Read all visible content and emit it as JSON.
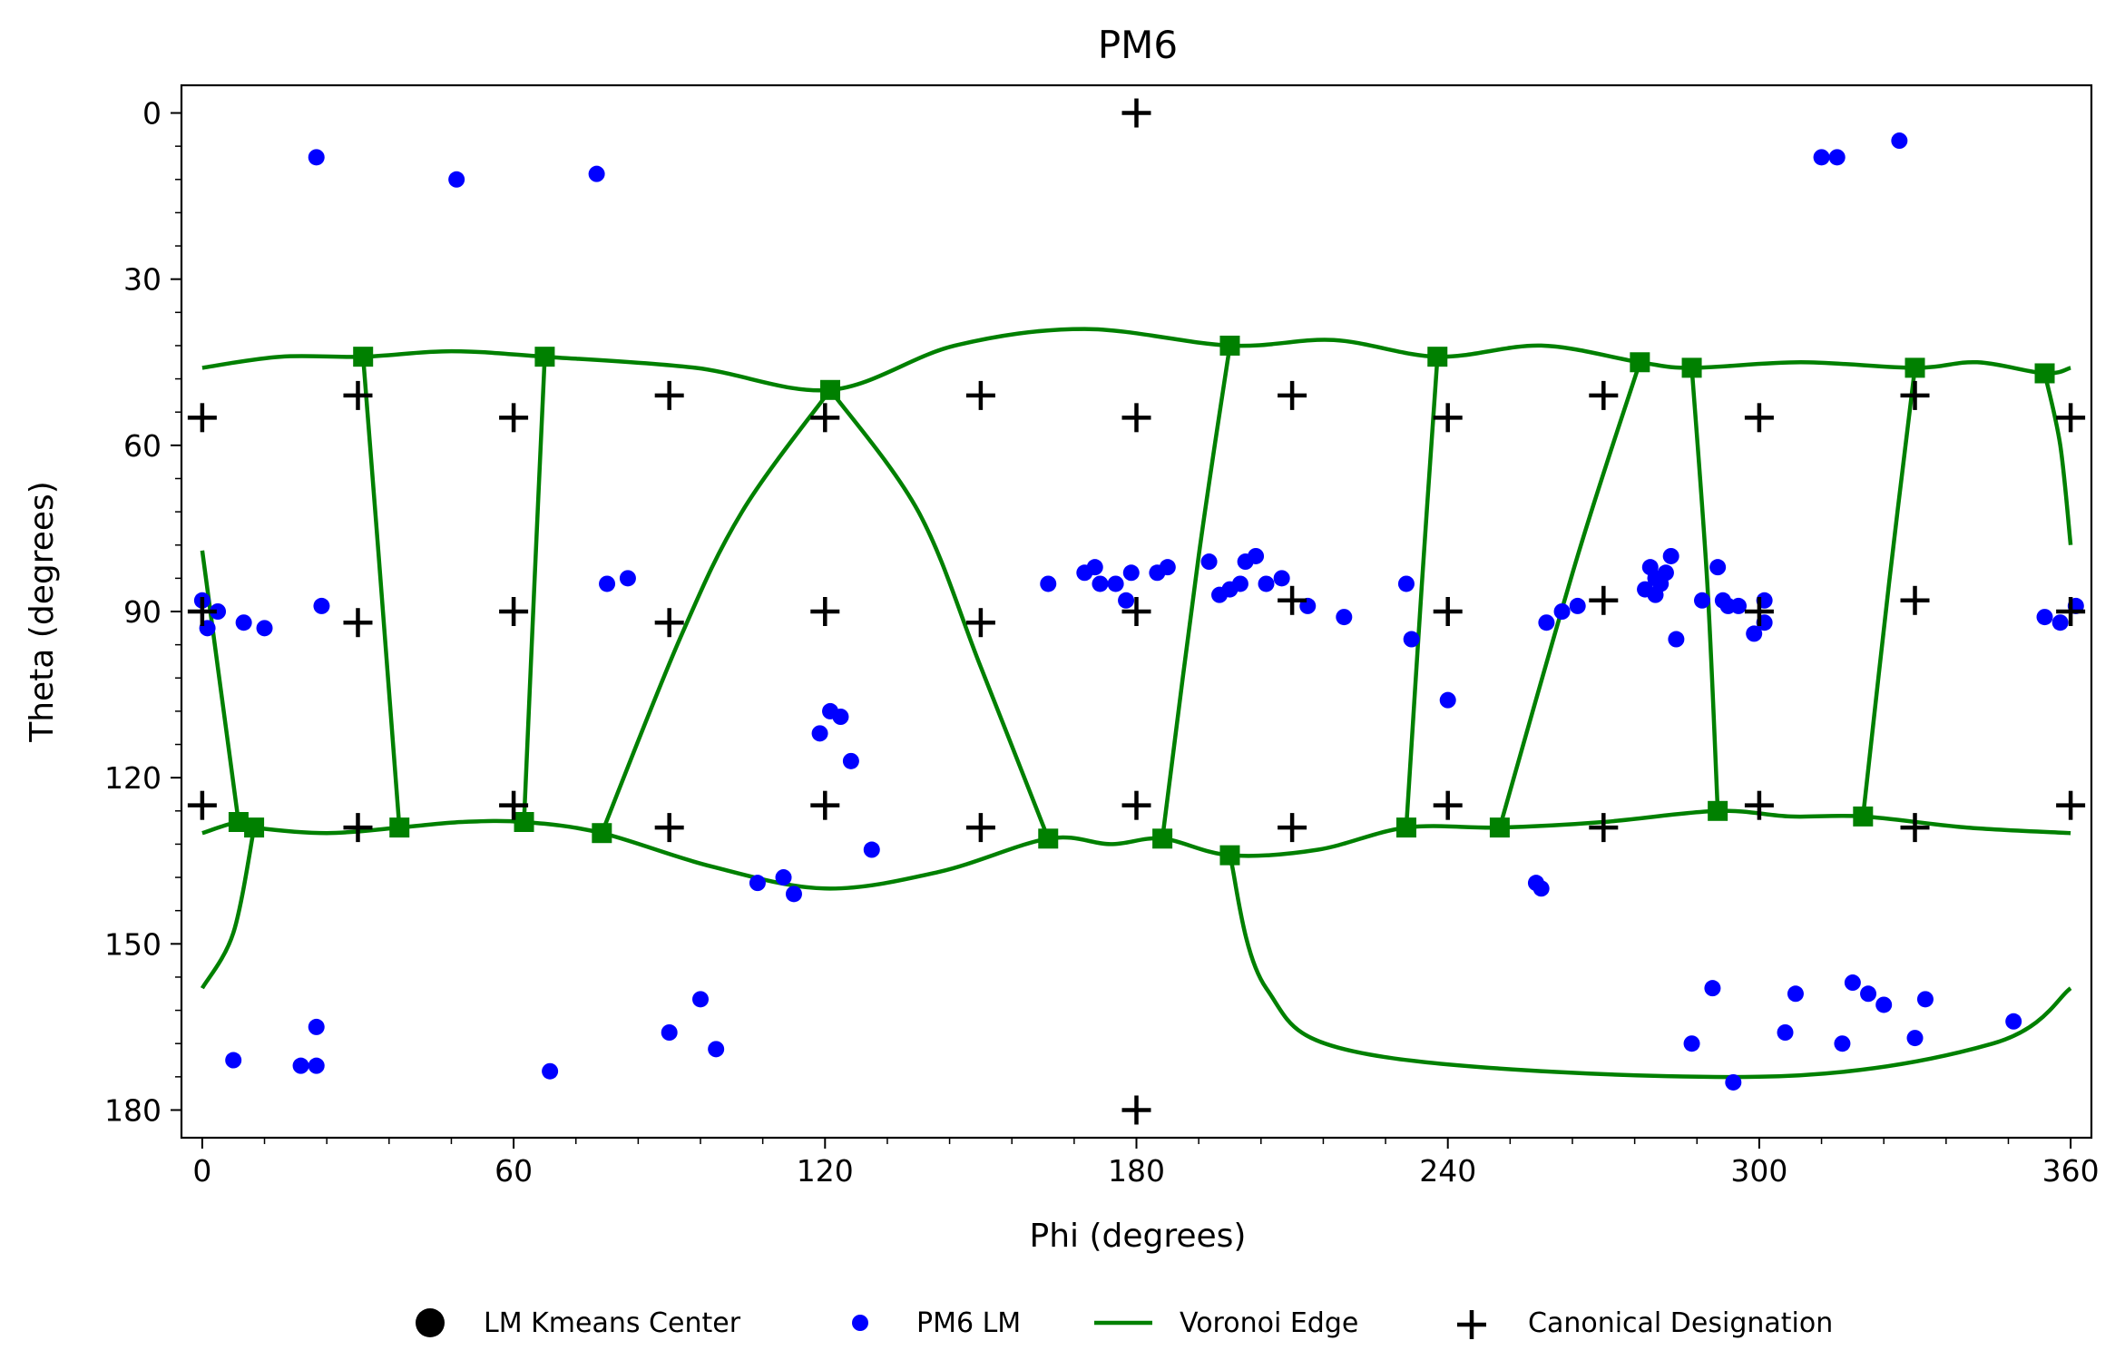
{
  "chart_data": {
    "type": "scatter",
    "title": "PM6",
    "xlabel": "Phi (degrees)",
    "ylabel": "Theta (degrees)",
    "xlim": [
      -4,
      364
    ],
    "ylim": [
      185,
      -5
    ],
    "y_inverted": true,
    "xticks": [
      0,
      60,
      120,
      180,
      240,
      300,
      360
    ],
    "yticks": [
      0,
      30,
      60,
      90,
      120,
      150,
      180
    ],
    "xtick_labels": [
      "0",
      "60",
      "120",
      "180",
      "240",
      "300",
      "360"
    ],
    "ytick_labels": [
      "0",
      "30",
      "60",
      "90",
      "120",
      "150",
      "180"
    ],
    "grid": false,
    "legend_position": "bottom-center",
    "colors": {
      "lm": "#0000ff",
      "voronoi": "#008000",
      "canonical": "#000000",
      "center": "#000000"
    },
    "legend": [
      {
        "label": "LM Kmeans Center",
        "marker": "large-dot"
      },
      {
        "label": "PM6 LM",
        "marker": "small-dot"
      },
      {
        "label": "Voronoi Edge",
        "marker": "line"
      },
      {
        "label": "Canonical Designation",
        "marker": "plus"
      }
    ],
    "series": [
      {
        "name": "PM6 LM",
        "points": [
          [
            22,
            8
          ],
          [
            49,
            12
          ],
          [
            76,
            11
          ],
          [
            0,
            88
          ],
          [
            1,
            93
          ],
          [
            3,
            90
          ],
          [
            8,
            92
          ],
          [
            12,
            93
          ],
          [
            23,
            89
          ],
          [
            78,
            85
          ],
          [
            82,
            84
          ],
          [
            163,
            85
          ],
          [
            170,
            83
          ],
          [
            172,
            82
          ],
          [
            173,
            85
          ],
          [
            176,
            85
          ],
          [
            178,
            88
          ],
          [
            179,
            83
          ],
          [
            184,
            83
          ],
          [
            186,
            82
          ],
          [
            194,
            81
          ],
          [
            196,
            87
          ],
          [
            198,
            86
          ],
          [
            200,
            85
          ],
          [
            201,
            81
          ],
          [
            203,
            80
          ],
          [
            205,
            85
          ],
          [
            208,
            84
          ],
          [
            213,
            89
          ],
          [
            220,
            91
          ],
          [
            232,
            85
          ],
          [
            233,
            95
          ],
          [
            240,
            106
          ],
          [
            259,
            92
          ],
          [
            262,
            90
          ],
          [
            265,
            89
          ],
          [
            278,
            86
          ],
          [
            279,
            82
          ],
          [
            280,
            84
          ],
          [
            280,
            87
          ],
          [
            281,
            85
          ],
          [
            282,
            83
          ],
          [
            283,
            80
          ],
          [
            284,
            95
          ],
          [
            289,
            88
          ],
          [
            292,
            82
          ],
          [
            293,
            88
          ],
          [
            294,
            89
          ],
          [
            296,
            89
          ],
          [
            299,
            94
          ],
          [
            301,
            88
          ],
          [
            301,
            92
          ],
          [
            355,
            91
          ],
          [
            358,
            92
          ],
          [
            361,
            89
          ],
          [
            119,
            112
          ],
          [
            121,
            108
          ],
          [
            123,
            109
          ],
          [
            125,
            117
          ],
          [
            129,
            133
          ],
          [
            107,
            139
          ],
          [
            112,
            138
          ],
          [
            114,
            141
          ],
          [
            257,
            139
          ],
          [
            258,
            140
          ],
          [
            312,
            8
          ],
          [
            315,
            8
          ],
          [
            327,
            5
          ],
          [
            6,
            171
          ],
          [
            19,
            172
          ],
          [
            22,
            172
          ],
          [
            22,
            165
          ],
          [
            90,
            166
          ],
          [
            96,
            160
          ],
          [
            99,
            169
          ],
          [
            67,
            173
          ],
          [
            287,
            168
          ],
          [
            291,
            158
          ],
          [
            295,
            175
          ],
          [
            305,
            166
          ],
          [
            307,
            159
          ],
          [
            316,
            168
          ],
          [
            318,
            157
          ],
          [
            321,
            159
          ],
          [
            324,
            161
          ],
          [
            330,
            167
          ],
          [
            332,
            160
          ],
          [
            349,
            164
          ]
        ]
      },
      {
        "name": "Canonical Designation",
        "points": [
          [
            180,
            0
          ],
          [
            0,
            55
          ],
          [
            30,
            51
          ],
          [
            60,
            55
          ],
          [
            90,
            51
          ],
          [
            120,
            55
          ],
          [
            150,
            51
          ],
          [
            180,
            55
          ],
          [
            210,
            51
          ],
          [
            240,
            55
          ],
          [
            270,
            51
          ],
          [
            300,
            55
          ],
          [
            330,
            51
          ],
          [
            360,
            55
          ],
          [
            0,
            90
          ],
          [
            30,
            92
          ],
          [
            60,
            90
          ],
          [
            90,
            92
          ],
          [
            120,
            90
          ],
          [
            150,
            92
          ],
          [
            180,
            90
          ],
          [
            210,
            88
          ],
          [
            240,
            90
          ],
          [
            270,
            88
          ],
          [
            300,
            90
          ],
          [
            330,
            88
          ],
          [
            360,
            90
          ],
          [
            0,
            125
          ],
          [
            30,
            129
          ],
          [
            60,
            125
          ],
          [
            90,
            129
          ],
          [
            120,
            125
          ],
          [
            150,
            129
          ],
          [
            180,
            125
          ],
          [
            210,
            129
          ],
          [
            240,
            125
          ],
          [
            270,
            129
          ],
          [
            300,
            125
          ],
          [
            330,
            129
          ],
          [
            360,
            125
          ],
          [
            180,
            180
          ]
        ]
      },
      {
        "name": "Voronoi Edge",
        "vertices": [
          [
            31,
            44
          ],
          [
            66,
            44
          ],
          [
            121,
            50
          ],
          [
            198,
            42
          ],
          [
            238,
            44
          ],
          [
            277,
            45
          ],
          [
            287,
            46
          ],
          [
            330,
            46
          ],
          [
            355,
            47
          ],
          [
            7,
            128
          ],
          [
            10,
            129
          ],
          [
            38,
            129
          ],
          [
            62,
            128
          ],
          [
            77,
            130
          ],
          [
            163,
            131
          ],
          [
            185,
            131
          ],
          [
            198,
            134
          ],
          [
            232,
            129
          ],
          [
            250,
            129
          ],
          [
            292,
            126
          ],
          [
            320,
            127
          ]
        ],
        "paths": [
          [
            [
              0,
              46
            ],
            [
              15,
              44
            ],
            [
              31,
              44
            ],
            [
              48,
              43
            ],
            [
              66,
              44
            ],
            [
              95,
              46
            ],
            [
              121,
              50
            ],
            [
              145,
              42
            ],
            [
              170,
              39
            ],
            [
              198,
              42
            ],
            [
              218,
              41
            ],
            [
              238,
              44
            ],
            [
              258,
              42
            ],
            [
              277,
              45
            ],
            [
              287,
              46
            ],
            [
              308,
              45
            ],
            [
              330,
              46
            ],
            [
              342,
              45
            ],
            [
              355,
              47
            ],
            [
              360,
              46
            ]
          ],
          [
            [
              0,
              130
            ],
            [
              7,
              128
            ],
            [
              10,
              129
            ],
            [
              24,
              130
            ],
            [
              38,
              129
            ],
            [
              50,
              128
            ],
            [
              62,
              128
            ],
            [
              77,
              130
            ],
            [
              98,
              136
            ],
            [
              120,
              140
            ],
            [
              142,
              137
            ],
            [
              163,
              131
            ],
            [
              175,
              132
            ],
            [
              185,
              131
            ],
            [
              198,
              134
            ],
            [
              215,
              133
            ],
            [
              232,
              129
            ],
            [
              250,
              129
            ],
            [
              270,
              128
            ],
            [
              292,
              126
            ],
            [
              306,
              127
            ],
            [
              320,
              127
            ],
            [
              340,
              129
            ],
            [
              360,
              130
            ]
          ],
          [
            [
              31,
              44
            ],
            [
              34,
              80
            ],
            [
              38,
              129
            ]
          ],
          [
            [
              66,
              44
            ],
            [
              64,
              85
            ],
            [
              62,
              128
            ]
          ],
          [
            [
              121,
              50
            ],
            [
              104,
              72
            ],
            [
              92,
              95
            ],
            [
              77,
              130
            ]
          ],
          [
            [
              121,
              50
            ],
            [
              138,
              72
            ],
            [
              150,
              100
            ],
            [
              163,
              131
            ]
          ],
          [
            [
              198,
              42
            ],
            [
              192,
              80
            ],
            [
              185,
              131
            ]
          ],
          [
            [
              238,
              44
            ],
            [
              235,
              85
            ],
            [
              232,
              129
            ]
          ],
          [
            [
              277,
              45
            ],
            [
              265,
              80
            ],
            [
              250,
              129
            ]
          ],
          [
            [
              287,
              46
            ],
            [
              290,
              85
            ],
            [
              292,
              126
            ]
          ],
          [
            [
              330,
              46
            ],
            [
              325,
              85
            ],
            [
              320,
              127
            ]
          ],
          [
            [
              355,
              47
            ],
            [
              358,
              60
            ],
            [
              360,
              78
            ]
          ],
          [
            [
              0,
              79
            ],
            [
              3,
              100
            ],
            [
              7,
              128
            ]
          ],
          [
            [
              10,
              129
            ],
            [
              6,
              148
            ],
            [
              0,
              158
            ]
          ],
          [
            [
              198,
              134
            ],
            [
              205,
              158
            ],
            [
              225,
              170
            ],
            [
              300,
              174
            ],
            [
              345,
              168
            ],
            [
              360,
              158
            ]
          ]
        ]
      }
    ]
  }
}
